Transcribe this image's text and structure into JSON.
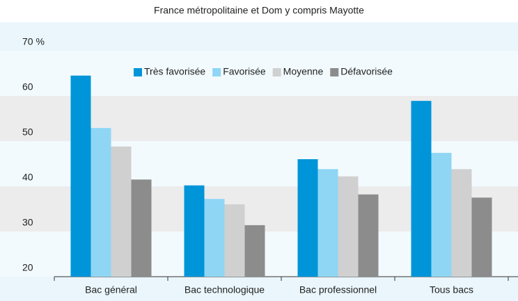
{
  "chart_data": {
    "type": "bar",
    "subtitle": "France métropolitaine et Dom y compris Mayotte",
    "categories": [
      "Bac général",
      "Bac technologique",
      "Bac professionnel",
      "Tous bacs"
    ],
    "series": [
      {
        "name": "Très favorisée",
        "color": "#0095d9",
        "values": [
          64.5,
          40.2,
          46,
          58.9
        ]
      },
      {
        "name": "Favorisée",
        "color": "#8fd6f5",
        "values": [
          52.9,
          37.2,
          43.8,
          47.4
        ]
      },
      {
        "name": "Moyenne",
        "color": "#d0d0d0",
        "values": [
          48.8,
          36,
          42.2,
          43.8
        ]
      },
      {
        "name": "Défavorisée",
        "color": "#8c8c8c",
        "values": [
          41.5,
          31.4,
          38.2,
          37.5
        ]
      }
    ],
    "ylim": [
      20,
      70
    ],
    "yticks": [
      20,
      30,
      40,
      50,
      60,
      {
        "value": 70,
        "label": "70 %"
      }
    ],
    "grid": true,
    "legend": "top"
  }
}
